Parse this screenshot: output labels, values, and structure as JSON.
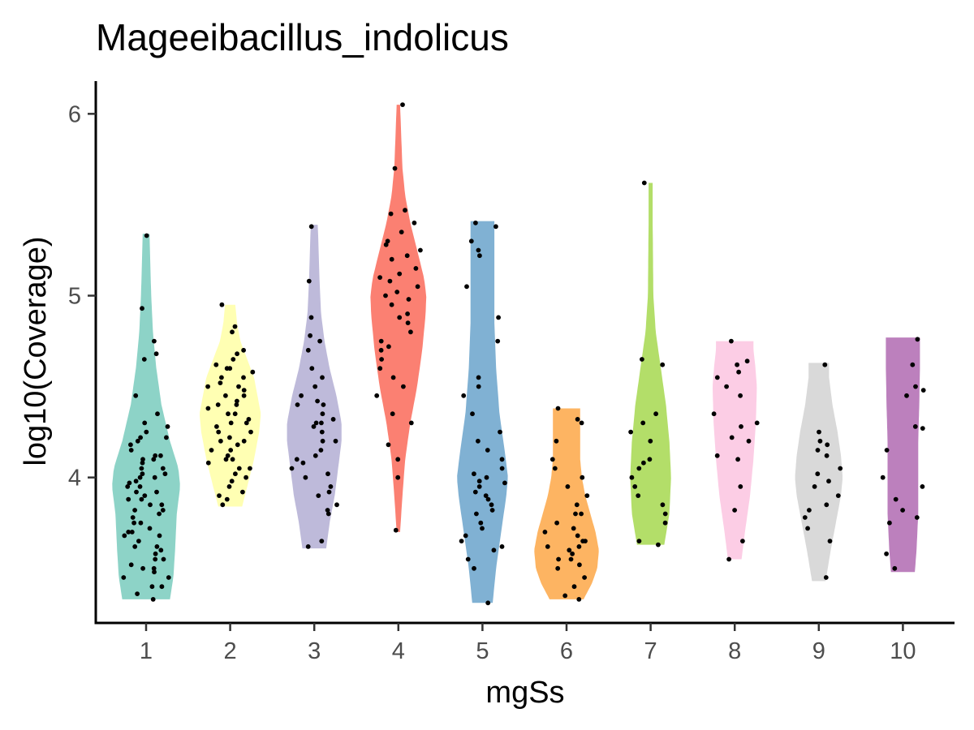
{
  "chart_data": {
    "type": "violin",
    "title": "Mageeibacillus_indolicus",
    "xlabel": "mgSs",
    "ylabel": "log10(Coverage)",
    "categories": [
      "1",
      "2",
      "3",
      "4",
      "5",
      "6",
      "7",
      "8",
      "9",
      "10"
    ],
    "ylim": [
      3.2,
      6.18
    ],
    "yticks": [
      4,
      5,
      6
    ],
    "grid": false,
    "legend": "none",
    "colors": [
      "#8DD3C7",
      "#FFFFB3",
      "#BEBADA",
      "#FB8072",
      "#80B1D3",
      "#FDB462",
      "#B3DE69",
      "#FCCDE5",
      "#D9D9D9",
      "#BC80BD"
    ],
    "series": [
      {
        "category": "1",
        "range": [
          3.33,
          5.34
        ],
        "density": [
          [
            3.33,
            0.7
          ],
          [
            3.45,
            0.8
          ],
          [
            3.6,
            0.85
          ],
          [
            3.8,
            0.9
          ],
          [
            3.95,
            1.0
          ],
          [
            4.05,
            0.95
          ],
          [
            4.2,
            0.7
          ],
          [
            4.4,
            0.45
          ],
          [
            4.6,
            0.3
          ],
          [
            4.8,
            0.2
          ],
          [
            5.0,
            0.15
          ],
          [
            5.2,
            0.12
          ],
          [
            5.34,
            0.1
          ]
        ],
        "points": [
          3.33,
          3.36,
          3.4,
          3.45,
          3.48,
          3.5,
          3.52,
          3.55,
          3.58,
          3.6,
          3.62,
          3.65,
          3.68,
          3.7,
          3.72,
          3.75,
          3.78,
          3.8,
          3.82,
          3.85,
          3.88,
          3.9,
          3.92,
          3.95,
          3.98,
          4.0,
          4.02,
          4.05,
          4.08,
          4.1,
          4.12,
          4.15,
          4.18,
          4.2,
          4.22,
          4.25,
          4.28,
          4.3,
          4.35,
          4.45,
          4.65,
          4.68,
          4.75,
          4.93,
          5.33,
          3.4,
          3.55,
          3.7,
          3.85,
          3.95,
          4.0,
          4.05,
          4.12,
          3.62,
          3.75,
          3.88,
          4.02,
          4.22,
          3.5,
          3.68,
          3.82,
          3.97,
          4.1,
          3.45,
          3.92
        ]
      },
      {
        "category": "2",
        "range": [
          3.84,
          4.95
        ],
        "density": [
          [
            3.84,
            0.35
          ],
          [
            3.95,
            0.5
          ],
          [
            4.1,
            0.7
          ],
          [
            4.25,
            0.85
          ],
          [
            4.35,
            0.9
          ],
          [
            4.45,
            0.8
          ],
          [
            4.55,
            0.7
          ],
          [
            4.65,
            0.5
          ],
          [
            4.75,
            0.3
          ],
          [
            4.85,
            0.2
          ],
          [
            4.95,
            0.15
          ]
        ],
        "points": [
          3.85,
          3.88,
          3.9,
          3.92,
          3.95,
          3.98,
          4.0,
          4.02,
          4.05,
          4.08,
          4.1,
          4.12,
          4.15,
          4.18,
          4.2,
          4.22,
          4.25,
          4.28,
          4.3,
          4.32,
          4.35,
          4.38,
          4.4,
          4.42,
          4.45,
          4.48,
          4.5,
          4.52,
          4.55,
          4.58,
          4.6,
          4.62,
          4.65,
          4.68,
          4.7,
          4.8,
          4.83,
          4.95,
          4.05,
          4.15,
          4.25,
          4.35,
          4.45,
          4.55,
          4.3,
          4.4,
          4.2,
          4.1,
          4.6,
          4.5
        ]
      },
      {
        "category": "3",
        "range": [
          3.61,
          5.39
        ],
        "density": [
          [
            3.61,
            0.35
          ],
          [
            3.75,
            0.45
          ],
          [
            3.9,
            0.6
          ],
          [
            4.05,
            0.7
          ],
          [
            4.2,
            0.8
          ],
          [
            4.3,
            0.8
          ],
          [
            4.45,
            0.65
          ],
          [
            4.6,
            0.45
          ],
          [
            4.75,
            0.3
          ],
          [
            4.9,
            0.2
          ],
          [
            5.1,
            0.15
          ],
          [
            5.3,
            0.12
          ],
          [
            5.39,
            0.1
          ]
        ],
        "points": [
          3.62,
          3.65,
          3.8,
          3.82,
          3.85,
          3.9,
          3.95,
          4.0,
          4.05,
          4.08,
          4.12,
          4.15,
          4.2,
          4.25,
          4.28,
          4.3,
          4.32,
          4.35,
          4.4,
          4.42,
          4.45,
          4.55,
          4.6,
          4.7,
          4.75,
          4.78,
          4.88,
          5.08,
          5.38,
          4.1,
          4.3,
          4.2,
          4.4,
          4.5,
          3.92,
          4.02
        ]
      },
      {
        "category": "4",
        "range": [
          3.7,
          6.05
        ],
        "density": [
          [
            3.7,
            0.05
          ],
          [
            3.9,
            0.12
          ],
          [
            4.1,
            0.2
          ],
          [
            4.3,
            0.35
          ],
          [
            4.5,
            0.55
          ],
          [
            4.7,
            0.7
          ],
          [
            4.9,
            0.8
          ],
          [
            5.0,
            0.82
          ],
          [
            5.1,
            0.75
          ],
          [
            5.25,
            0.55
          ],
          [
            5.4,
            0.35
          ],
          [
            5.55,
            0.2
          ],
          [
            5.7,
            0.12
          ],
          [
            5.9,
            0.08
          ],
          [
            6.05,
            0.05
          ]
        ],
        "points": [
          3.71,
          4.0,
          4.1,
          4.18,
          4.3,
          4.35,
          4.45,
          4.5,
          4.55,
          4.6,
          4.65,
          4.7,
          4.75,
          4.8,
          4.85,
          4.9,
          4.95,
          5.0,
          5.02,
          5.05,
          5.08,
          5.1,
          5.15,
          5.2,
          5.25,
          5.28,
          5.3,
          5.35,
          5.4,
          5.45,
          5.47,
          5.7,
          6.05,
          4.72,
          4.88,
          4.98,
          5.12,
          5.22
        ]
      },
      {
        "category": "5",
        "range": [
          3.31,
          5.41
        ],
        "density": [
          [
            3.31,
            0.3
          ],
          [
            3.5,
            0.4
          ],
          [
            3.7,
            0.55
          ],
          [
            3.9,
            0.7
          ],
          [
            4.0,
            0.75
          ],
          [
            4.15,
            0.65
          ],
          [
            4.35,
            0.5
          ],
          [
            4.6,
            0.4
          ],
          [
            4.85,
            0.35
          ],
          [
            5.1,
            0.35
          ],
          [
            5.3,
            0.35
          ],
          [
            5.41,
            0.35
          ]
        ],
        "points": [
          3.31,
          3.5,
          3.55,
          3.6,
          3.65,
          3.68,
          3.72,
          3.75,
          3.8,
          3.85,
          3.88,
          3.9,
          3.92,
          3.95,
          3.98,
          4.0,
          4.02,
          4.05,
          4.1,
          4.15,
          4.2,
          4.25,
          4.35,
          4.45,
          4.5,
          4.55,
          4.75,
          4.88,
          5.05,
          5.22,
          5.25,
          5.3,
          5.38,
          5.4,
          3.62,
          3.82,
          3.97
        ]
      },
      {
        "category": "6",
        "range": [
          3.33,
          4.38
        ],
        "density": [
          [
            3.33,
            0.5
          ],
          [
            3.42,
            0.75
          ],
          [
            3.5,
            0.9
          ],
          [
            3.6,
            0.95
          ],
          [
            3.7,
            0.85
          ],
          [
            3.8,
            0.7
          ],
          [
            3.9,
            0.55
          ],
          [
            4.0,
            0.45
          ],
          [
            4.1,
            0.4
          ],
          [
            4.2,
            0.4
          ],
          [
            4.3,
            0.4
          ],
          [
            4.38,
            0.4
          ]
        ],
        "points": [
          3.33,
          3.35,
          3.4,
          3.45,
          3.5,
          3.52,
          3.55,
          3.58,
          3.6,
          3.62,
          3.65,
          3.68,
          3.7,
          3.72,
          3.75,
          3.8,
          3.85,
          3.9,
          3.95,
          4.0,
          4.05,
          4.1,
          4.2,
          4.3,
          4.32,
          4.38,
          3.55,
          3.65,
          3.62,
          3.8
        ]
      },
      {
        "category": "7",
        "range": [
          3.63,
          5.62
        ],
        "density": [
          [
            3.63,
            0.4
          ],
          [
            3.8,
            0.55
          ],
          [
            4.0,
            0.6
          ],
          [
            4.2,
            0.55
          ],
          [
            4.4,
            0.45
          ],
          [
            4.6,
            0.3
          ],
          [
            4.8,
            0.15
          ],
          [
            5.0,
            0.08
          ],
          [
            5.2,
            0.07
          ],
          [
            5.4,
            0.06
          ],
          [
            5.62,
            0.06
          ]
        ],
        "points": [
          3.63,
          3.65,
          3.75,
          3.8,
          3.85,
          3.9,
          3.95,
          4.0,
          4.05,
          4.08,
          4.1,
          4.2,
          4.25,
          4.3,
          4.35,
          4.62,
          4.65,
          5.62
        ]
      },
      {
        "category": "8",
        "range": [
          3.55,
          4.75
        ],
        "density": [
          [
            3.55,
            0.2
          ],
          [
            3.7,
            0.3
          ],
          [
            3.9,
            0.45
          ],
          [
            4.1,
            0.55
          ],
          [
            4.3,
            0.62
          ],
          [
            4.5,
            0.65
          ],
          [
            4.62,
            0.6
          ],
          [
            4.7,
            0.55
          ],
          [
            4.75,
            0.55
          ]
        ],
        "points": [
          3.55,
          3.65,
          3.82,
          3.95,
          4.1,
          4.12,
          4.2,
          4.22,
          4.28,
          4.45,
          4.5,
          4.55,
          4.58,
          4.62,
          4.64,
          4.75,
          4.35,
          4.3
        ]
      },
      {
        "category": "9",
        "range": [
          3.43,
          4.63
        ],
        "density": [
          [
            3.43,
            0.2
          ],
          [
            3.6,
            0.35
          ],
          [
            3.75,
            0.5
          ],
          [
            3.9,
            0.65
          ],
          [
            4.0,
            0.7
          ],
          [
            4.12,
            0.65
          ],
          [
            4.25,
            0.55
          ],
          [
            4.4,
            0.4
          ],
          [
            4.55,
            0.3
          ],
          [
            4.63,
            0.3
          ]
        ],
        "points": [
          3.45,
          3.65,
          3.72,
          3.78,
          3.85,
          3.9,
          3.95,
          4.02,
          4.05,
          4.12,
          4.15,
          4.18,
          4.2,
          4.25,
          4.62,
          3.98,
          3.82
        ]
      },
      {
        "category": "10",
        "range": [
          3.48,
          4.77
        ],
        "density": [
          [
            3.48,
            0.35
          ],
          [
            3.6,
            0.4
          ],
          [
            3.8,
            0.45
          ],
          [
            4.0,
            0.45
          ],
          [
            4.2,
            0.45
          ],
          [
            4.4,
            0.48
          ],
          [
            4.6,
            0.5
          ],
          [
            4.7,
            0.5
          ],
          [
            4.77,
            0.5
          ]
        ],
        "points": [
          3.5,
          3.58,
          3.75,
          3.78,
          3.82,
          3.88,
          4.0,
          4.15,
          4.27,
          4.28,
          4.45,
          4.48,
          4.5,
          4.62,
          4.76,
          3.95
        ]
      }
    ]
  }
}
